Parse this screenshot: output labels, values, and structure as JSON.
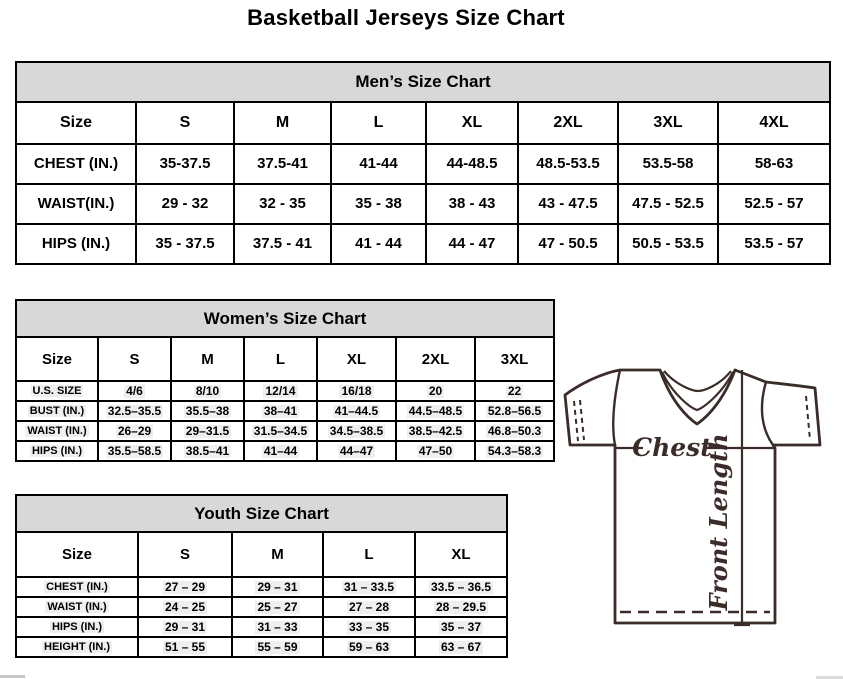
{
  "page": {
    "title": "Basketball Jerseys Size Chart"
  },
  "colors": {
    "table_header_bg": "#d8d8d8",
    "table_border": "#000000",
    "jersey_line": "#3a2c28",
    "text": "#000000"
  },
  "tables": {
    "men": {
      "title": "Men’s Size Chart",
      "columns": [
        "Size",
        "S",
        "M",
        "L",
        "XL",
        "2XL",
        "3XL",
        "4XL"
      ],
      "rows": [
        {
          "label": "CHEST (IN.)",
          "values": [
            "35-37.5",
            "37.5-41",
            "41-44",
            "44-48.5",
            "48.5-53.5",
            "53.5-58",
            "58-63"
          ]
        },
        {
          "label": "WAIST(IN.)",
          "values": [
            "29 - 32",
            "32 - 35",
            "35 - 38",
            "38 - 43",
            "43 - 47.5",
            "47.5 - 52.5",
            "52.5 - 57"
          ]
        },
        {
          "label": "HIPS (IN.)",
          "values": [
            "35 - 37.5",
            "37.5 - 41",
            "41 - 44",
            "44 - 47",
            "47 - 50.5",
            "50.5 - 53.5",
            "53.5 - 57"
          ]
        }
      ]
    },
    "women": {
      "title": "Women’s Size Chart",
      "columns": [
        "Size",
        "S",
        "M",
        "L",
        "XL",
        "2XL",
        "3XL"
      ],
      "rows": [
        {
          "label": "U.S. SIZE",
          "values": [
            "4/6",
            "8/10",
            "12/14",
            "16/18",
            "20",
            "22"
          ]
        },
        {
          "label": "BUST (IN.)",
          "values": [
            "32.5–35.5",
            "35.5–38",
            "38–41",
            "41–44.5",
            "44.5–48.5",
            "52.8–56.5"
          ]
        },
        {
          "label": "WAIST (IN.)",
          "values": [
            "26–29",
            "29–31.5",
            "31.5–34.5",
            "34.5–38.5",
            "38.5–42.5",
            "46.8–50.3"
          ]
        },
        {
          "label": "HIPS (IN.)",
          "values": [
            "35.5–58.5",
            "38.5–41",
            "41–44",
            "44–47",
            "47–50",
            "54.3–58.3"
          ]
        }
      ]
    },
    "youth": {
      "title": "Youth Size Chart",
      "columns": [
        "Size",
        "S",
        "M",
        "L",
        "XL"
      ],
      "rows": [
        {
          "label": "CHEST (IN.)",
          "values": [
            "27 – 29",
            "29 – 31",
            "31 – 33.5",
            "33.5 – 36.5"
          ]
        },
        {
          "label": "WAIST (IN.)",
          "values": [
            "24 – 25",
            "25 – 27",
            "27 – 28",
            "28 – 29.5"
          ]
        },
        {
          "label": "HIPS (IN.)",
          "values": [
            "29 – 31",
            "31 – 33",
            "33 – 35",
            "35 – 37"
          ]
        },
        {
          "label": "HEIGHT (IN.)",
          "values": [
            "51 – 55",
            "55 – 59",
            "59 – 63",
            "63 – 67"
          ]
        }
      ]
    }
  },
  "jersey_diagram": {
    "chest_label": "Chest",
    "front_length_label": "Front Length"
  }
}
